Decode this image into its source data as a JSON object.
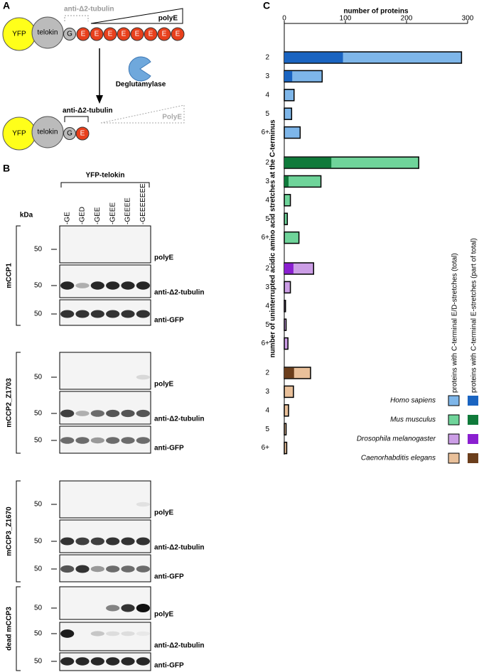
{
  "panel_a": {
    "label": "A",
    "top": {
      "yfp": "YFP",
      "telokin": "telokin",
      "g": "G",
      "e": [
        "E",
        "E",
        "E",
        "E",
        "E",
        "E",
        "E",
        "E"
      ],
      "antibody": "anti-Δ2-tubulin",
      "polye": "polyE"
    },
    "enzyme": "Deglutamylase",
    "bottom": {
      "yfp": "YFP",
      "telokin": "telokin",
      "g": "G",
      "e": "E",
      "antibody": "anti-Δ2-tubulin",
      "polye": "PolyE"
    }
  },
  "panel_b": {
    "label": "B",
    "construct": "YFP-telokin",
    "kda": "kDa",
    "lanes": [
      "-GE",
      "-GED",
      "-GEE",
      "-GEEE",
      "-GEEEE",
      "-GEEEEEEE"
    ],
    "groups": [
      {
        "name": "mCCP1",
        "blots": [
          {
            "antibody": "polyE",
            "marker": 50
          },
          {
            "antibody": "anti-Δ2-tubulin",
            "marker": 50
          },
          {
            "antibody": "anti-GFP",
            "marker": 50
          }
        ]
      },
      {
        "name": "mCCP2_Z1703",
        "blots": [
          {
            "antibody": "polyE",
            "marker": 50
          },
          {
            "antibody": "anti-Δ2-tubulin",
            "marker": 50
          },
          {
            "antibody": "anti-GFP",
            "marker": 50
          }
        ]
      },
      {
        "name": "mCCP3_Z1670",
        "blots": [
          {
            "antibody": "polyE",
            "marker": 50
          },
          {
            "antibody": "anti-Δ2-tubulin",
            "marker": 50
          },
          {
            "antibody": "anti-GFP",
            "marker": 50
          }
        ]
      },
      {
        "name": "dead mCCP3",
        "blots": [
          {
            "antibody": "polyE",
            "marker": 50
          },
          {
            "antibody": "anti-Δ2-tubulin",
            "marker": 50
          },
          {
            "antibody": "anti-GFP",
            "marker": 50
          }
        ]
      }
    ]
  },
  "panel_c_label": "C",
  "chart_data": {
    "type": "bar",
    "orientation": "horizontal",
    "x_label": "number of proteins",
    "y_label": "number of uninterrupted acidic amino acid stretches at the C-terminus",
    "xlim": [
      0,
      300
    ],
    "xticks": [
      0,
      100,
      200,
      300
    ],
    "legend_total": "proteins with C-terminal E/D-stretches (total)",
    "legend_part": "proteins with C-terminal E-stretches (part of total)",
    "groups": [
      {
        "name": "Homo sapiens",
        "categories": [
          "2",
          "3",
          "4",
          "5",
          "6+"
        ],
        "total": {
          "color": "#7eb6e9",
          "values": [
            290,
            62,
            16,
            12,
            26
          ]
        },
        "part": {
          "color": "#1a64c1",
          "values": [
            96,
            13,
            0,
            0,
            0
          ]
        }
      },
      {
        "name": "Mus musculus",
        "categories": [
          "2",
          "3",
          "4",
          "5",
          "6+"
        ],
        "total": {
          "color": "#6fd49a",
          "values": [
            220,
            60,
            10,
            5,
            24
          ]
        },
        "part": {
          "color": "#0f7a3a",
          "values": [
            77,
            7,
            0,
            0,
            0
          ]
        }
      },
      {
        "name": "Drosophila melanogaster",
        "categories": [
          "2",
          "3",
          "4",
          "5",
          "6+"
        ],
        "total": {
          "color": "#cc9ee6",
          "values": [
            48,
            10,
            2,
            3,
            6
          ]
        },
        "part": {
          "color": "#8a1fd0",
          "values": [
            15,
            0,
            0,
            0,
            0
          ]
        }
      },
      {
        "name": "Caenorhabditis elegans",
        "categories": [
          "2",
          "3",
          "4",
          "5",
          "6+"
        ],
        "total": {
          "color": "#e9c09a",
          "values": [
            43,
            15,
            7,
            3,
            4
          ]
        },
        "part": {
          "color": "#6b3e1c",
          "values": [
            16,
            0,
            0,
            0,
            0
          ]
        }
      }
    ]
  }
}
